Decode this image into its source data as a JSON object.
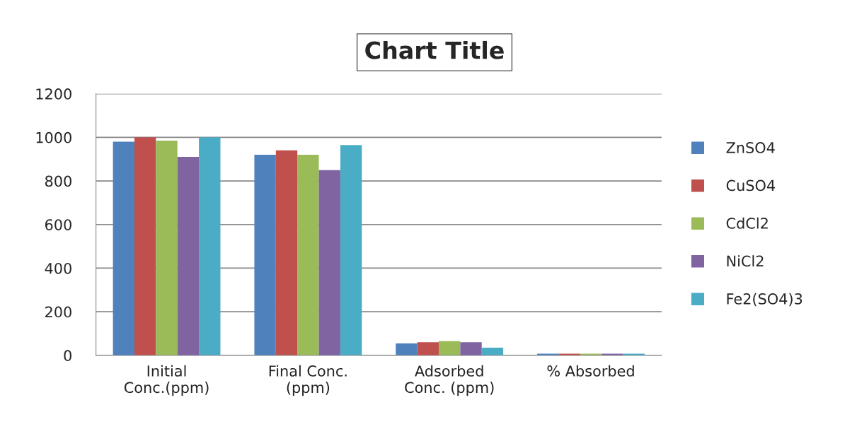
{
  "chart_data": {
    "type": "bar",
    "title": "Chart Title",
    "categories": [
      "Initial\nConc.(ppm)",
      "Final Conc.\n(ppm)",
      "Adsorbed\nConc. (ppm)",
      "% Absorbed"
    ],
    "series": [
      {
        "name": "ZnSO4",
        "color": "#4f81bd",
        "values": [
          980,
          920,
          55,
          8
        ]
      },
      {
        "name": "CuSO4",
        "color": "#c0504d",
        "values": [
          1000,
          940,
          60,
          8
        ]
      },
      {
        "name": "CdCl2",
        "color": "#9bbb59",
        "values": [
          985,
          920,
          65,
          8
        ]
      },
      {
        "name": "NiCl2",
        "color": "#8064a2",
        "values": [
          910,
          850,
          60,
          8
        ]
      },
      {
        "name": "Fe2(SO4)3",
        "color": "#4bacc6",
        "values": [
          1000,
          965,
          35,
          8
        ]
      }
    ],
    "ylim": [
      0,
      1200
    ],
    "yticks": [
      0,
      200,
      400,
      600,
      800,
      1000,
      1200
    ],
    "grid": "y",
    "legend": "right"
  }
}
